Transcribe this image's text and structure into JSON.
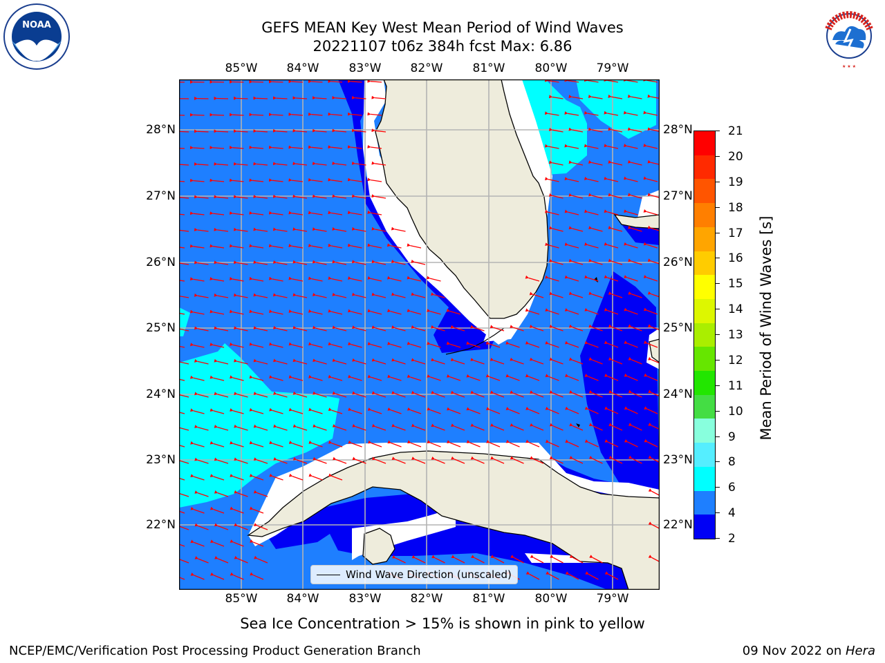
{
  "title": {
    "line1": "GEFS MEAN Key West Mean Period of Wind Waves",
    "line2": "20221107 t06z 384h fcst   Max: 6.86"
  },
  "map": {
    "lon_labels": [
      "85°W",
      "84°W",
      "83°W",
      "82°W",
      "81°W",
      "80°W",
      "79°W"
    ],
    "lat_labels": [
      "28°N",
      "27°N",
      "26°N",
      "25°N",
      "24°N",
      "23°N",
      "22°N"
    ],
    "legend": "Wind Wave Direction (unscaled)",
    "colors": {
      "ocean_mid": "#1e7fff",
      "ocean_low": "#0000f5",
      "ocean_high": "#00ffff",
      "land": "#eeecdc",
      "arrows": "#ff0000",
      "grid": "#b3b3b3"
    }
  },
  "colorbar": {
    "title": "Mean Period of Wind Waves [s]",
    "labels": [
      "21",
      "20",
      "19",
      "18",
      "17",
      "16",
      "15",
      "14",
      "13",
      "12",
      "11",
      "10",
      "9",
      "8",
      "6",
      "4",
      "2"
    ],
    "colors": [
      "#ff0000",
      "#ff2a00",
      "#ff5500",
      "#ff7f00",
      "#ffa500",
      "#ffcc00",
      "#ffff00",
      "#ddf700",
      "#aaee00",
      "#66e600",
      "#22e600",
      "#44dd44",
      "#88ffdd",
      "#55eeff",
      "#00ffff",
      "#1e7fff",
      "#0000f5"
    ]
  },
  "caption": "Sea Ice Concentration > 15% is shown in pink to yellow",
  "footer": {
    "left": "NCEP/EMC/Verification Post Processing Product Generation Branch",
    "right_date": "09 Nov 2022 on ",
    "right_machine": "Hera"
  },
  "logos": {
    "noaa": "NOAA",
    "nws": "NATIONAL WEATHER SERVICE"
  }
}
